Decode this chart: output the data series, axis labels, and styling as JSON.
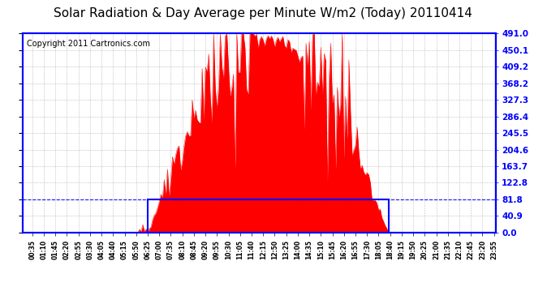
{
  "title": "Solar Radiation & Day Average per Minute W/m2 (Today) 20110414",
  "copyright": "Copyright 2011 Cartronics.com",
  "y_max": 491.0,
  "y_ticks": [
    0.0,
    40.9,
    81.8,
    122.8,
    163.7,
    204.6,
    245.5,
    286.4,
    327.3,
    368.2,
    409.2,
    450.1,
    491.0
  ],
  "y_tick_labels": [
    "0.0",
    "40.9",
    "81.8",
    "122.8",
    "163.7",
    "204.6",
    "245.5",
    "286.4",
    "327.3",
    "368.2",
    "409.2",
    "450.1",
    "491.0"
  ],
  "bg_color": "#ffffff",
  "fill_color": "#ff0000",
  "border_color": "#0000ff",
  "grid_color": "#b0b0b0",
  "box_color": "#0000ff",
  "title_fontsize": 11,
  "copyright_fontsize": 7,
  "avg_value": 81.8,
  "num_points": 288,
  "sunrise_idx": 76,
  "sunset_idx": 222
}
